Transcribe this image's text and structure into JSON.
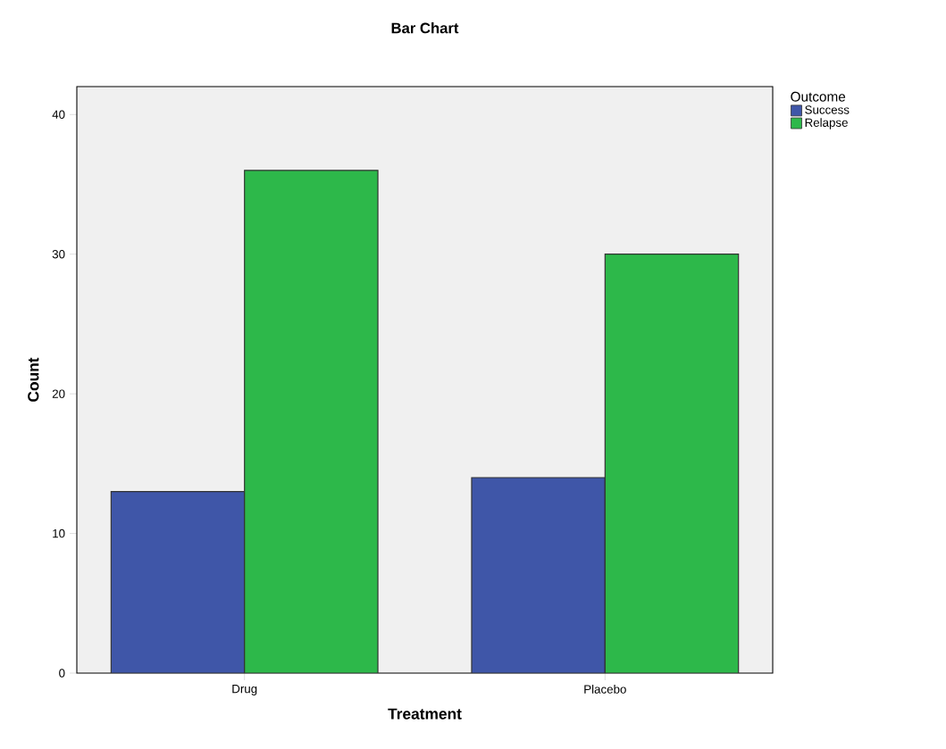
{
  "chart_data": {
    "type": "bar",
    "title": "Bar Chart",
    "xlabel": "Treatment",
    "ylabel": "Count",
    "legend_title": "Outcome",
    "categories": [
      "Drug",
      "Placebo"
    ],
    "series": [
      {
        "name": "Success",
        "color": "#3f56a8",
        "values": [
          13,
          14
        ]
      },
      {
        "name": "Relapse",
        "color": "#2db84a",
        "values": [
          36,
          30
        ]
      }
    ],
    "ylim": [
      0,
      42
    ],
    "yticks": [
      0,
      10,
      20,
      30,
      40
    ],
    "grid": false,
    "legend": "top right"
  }
}
